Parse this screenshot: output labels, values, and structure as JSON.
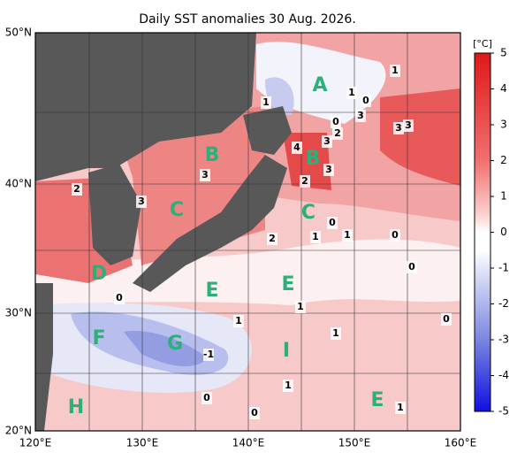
{
  "title": "Daily SST anomalies 30 Aug. 2026.",
  "lat_labels": [
    "50°N",
    "40°N",
    "30°N",
    "20°N"
  ],
  "lon_labels": [
    "120°E",
    "130°E",
    "140°E",
    "150°E",
    "160°E"
  ],
  "colorbar": {
    "unit": "[°C]",
    "ticks": [
      5,
      4,
      3,
      2,
      1,
      0,
      -1,
      -2,
      -3,
      -4,
      -5
    ]
  },
  "regions": [
    "A",
    "B",
    "B",
    "C",
    "C",
    "D",
    "E",
    "E",
    "E",
    "F",
    "G",
    "H",
    "I"
  ],
  "contour_labels": [
    "1",
    "1",
    "1",
    "0",
    "3",
    "0",
    "2",
    "3",
    "3",
    "3",
    "4",
    "3",
    "3",
    "2",
    "2",
    "3",
    "0",
    "1",
    "1",
    "0",
    "2",
    "0",
    "0",
    "1",
    "0",
    "1",
    "1",
    "-1",
    "1",
    "0",
    "0",
    "1"
  ]
}
